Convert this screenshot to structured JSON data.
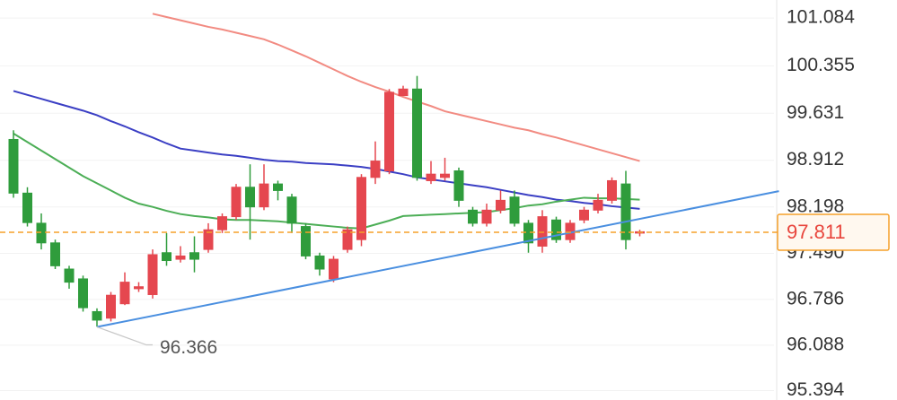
{
  "chart_data": {
    "type": "candlestick",
    "categories": [
      null,
      null,
      null,
      null,
      null,
      null,
      null,
      null,
      null,
      null,
      null,
      null,
      null,
      null,
      null,
      null,
      null,
      null,
      null,
      null,
      null,
      null,
      null,
      null,
      null,
      null,
      null,
      null,
      null,
      null,
      null,
      null,
      null,
      null,
      null,
      null,
      null,
      null,
      null,
      null,
      null,
      null,
      null,
      null,
      null,
      null
    ],
    "open": [
      99.23,
      98.41,
      97.95,
      97.65,
      97.25,
      97.1,
      96.6,
      96.5,
      96.72,
      96.95,
      96.86,
      97.5,
      97.4,
      97.5,
      97.55,
      97.85,
      98.05,
      98.5,
      98.2,
      98.55,
      98.35,
      97.9,
      97.45,
      97.1,
      97.55,
      97.7,
      98.65,
      98.75,
      99.9,
      100.0,
      98.6,
      98.65,
      98.75,
      98.15,
      97.95,
      98.15,
      98.35,
      97.95,
      97.6,
      98.0,
      97.7,
      98.0,
      98.15,
      98.3,
      98.55,
      97.8
    ],
    "high": [
      99.37,
      98.5,
      98.1,
      97.7,
      97.3,
      97.15,
      96.65,
      96.9,
      97.2,
      97.05,
      97.55,
      97.8,
      97.6,
      97.75,
      97.95,
      98.1,
      98.55,
      98.85,
      98.85,
      98.6,
      98.4,
      97.95,
      97.5,
      97.45,
      97.9,
      98.7,
      99.2,
      100.0,
      100.05,
      100.2,
      98.9,
      98.95,
      98.8,
      98.2,
      98.25,
      98.45,
      98.45,
      98.0,
      98.15,
      98.05,
      98.0,
      98.2,
      98.4,
      98.65,
      98.75,
      97.85
    ],
    "low": [
      98.34,
      97.9,
      97.55,
      97.25,
      96.95,
      96.6,
      96.37,
      96.45,
      96.7,
      96.9,
      96.8,
      97.3,
      97.35,
      97.2,
      97.5,
      97.8,
      98.0,
      97.7,
      98.15,
      98.3,
      97.8,
      97.4,
      97.15,
      97.05,
      97.5,
      97.6,
      98.55,
      98.7,
      99.9,
      98.6,
      98.55,
      98.6,
      98.2,
      97.9,
      97.9,
      98.1,
      97.9,
      97.5,
      97.5,
      97.65,
      97.65,
      97.95,
      98.1,
      98.25,
      97.55,
      97.75
    ],
    "close": [
      98.41,
      97.96,
      97.65,
      97.3,
      97.05,
      96.66,
      96.47,
      96.85,
      97.05,
      96.98,
      97.47,
      97.38,
      97.45,
      97.4,
      97.85,
      98.05,
      98.5,
      98.2,
      98.55,
      98.45,
      97.95,
      97.45,
      97.25,
      97.4,
      97.85,
      98.65,
      98.9,
      99.95,
      100.0,
      98.65,
      98.7,
      98.7,
      98.3,
      97.95,
      98.15,
      98.3,
      97.95,
      97.65,
      98.05,
      97.7,
      97.95,
      98.15,
      98.3,
      98.6,
      97.7,
      97.82
    ],
    "up_color": "#e5474f",
    "down_color": "#2f9c3c",
    "series": [
      {
        "color": "#f28b82",
        "values": [
          null,
          null,
          null,
          null,
          null,
          null,
          null,
          null,
          null,
          null,
          101.15,
          101.1,
          101.05,
          101.0,
          100.95,
          100.91,
          100.86,
          100.81,
          100.76,
          100.68,
          100.59,
          100.5,
          100.4,
          100.3,
          100.2,
          100.11,
          100.03,
          99.96,
          99.88,
          99.81,
          99.74,
          99.66,
          99.61,
          99.56,
          99.51,
          99.46,
          99.41,
          99.37,
          99.31,
          99.26,
          99.2,
          99.14,
          99.08,
          99.02,
          98.96,
          98.9
        ]
      },
      {
        "color": "#3b3fc4",
        "values": [
          99.97,
          99.91,
          99.85,
          99.79,
          99.73,
          99.67,
          99.6,
          99.51,
          99.43,
          99.34,
          99.26,
          99.17,
          99.09,
          99.06,
          99.03,
          99.0,
          98.98,
          98.95,
          98.92,
          98.9,
          98.89,
          98.87,
          98.86,
          98.85,
          98.83,
          98.81,
          98.78,
          98.74,
          98.7,
          98.65,
          98.62,
          98.59,
          98.56,
          98.53,
          98.5,
          98.46,
          98.42,
          98.38,
          98.35,
          98.31,
          98.29,
          98.26,
          98.24,
          98.21,
          98.19,
          98.17
        ]
      },
      {
        "color": "#4cae56",
        "values": [
          99.32,
          99.19,
          99.06,
          98.93,
          98.8,
          98.67,
          98.56,
          98.45,
          98.34,
          98.25,
          98.2,
          98.14,
          98.09,
          98.06,
          98.04,
          98.01,
          98.0,
          98.0,
          97.99,
          97.98,
          97.96,
          97.94,
          97.92,
          97.9,
          97.88,
          97.87,
          97.93,
          97.99,
          98.06,
          98.07,
          98.08,
          98.09,
          98.1,
          98.11,
          98.12,
          98.15,
          98.18,
          98.22,
          98.24,
          98.28,
          98.31,
          98.34,
          98.33,
          98.33,
          98.32,
          98.31
        ]
      }
    ],
    "trendline": {
      "color": "#4a8fe0",
      "x": [
        6,
        55
      ],
      "values": [
        96.366,
        98.44
      ]
    },
    "last_price": {
      "value": 97.811,
      "label": "97.811",
      "color": "#f5a02a"
    },
    "annotation": {
      "value": 96.366,
      "x": 6,
      "label": "96.366"
    },
    "ylim": [
      95.25,
      101.36
    ],
    "yticks": [
      101.084,
      100.355,
      99.631,
      98.912,
      98.198,
      {
        "value": 97.49,
        "label": "97.490"
      },
      96.786,
      96.088,
      95.394
    ],
    "grid": true
  }
}
